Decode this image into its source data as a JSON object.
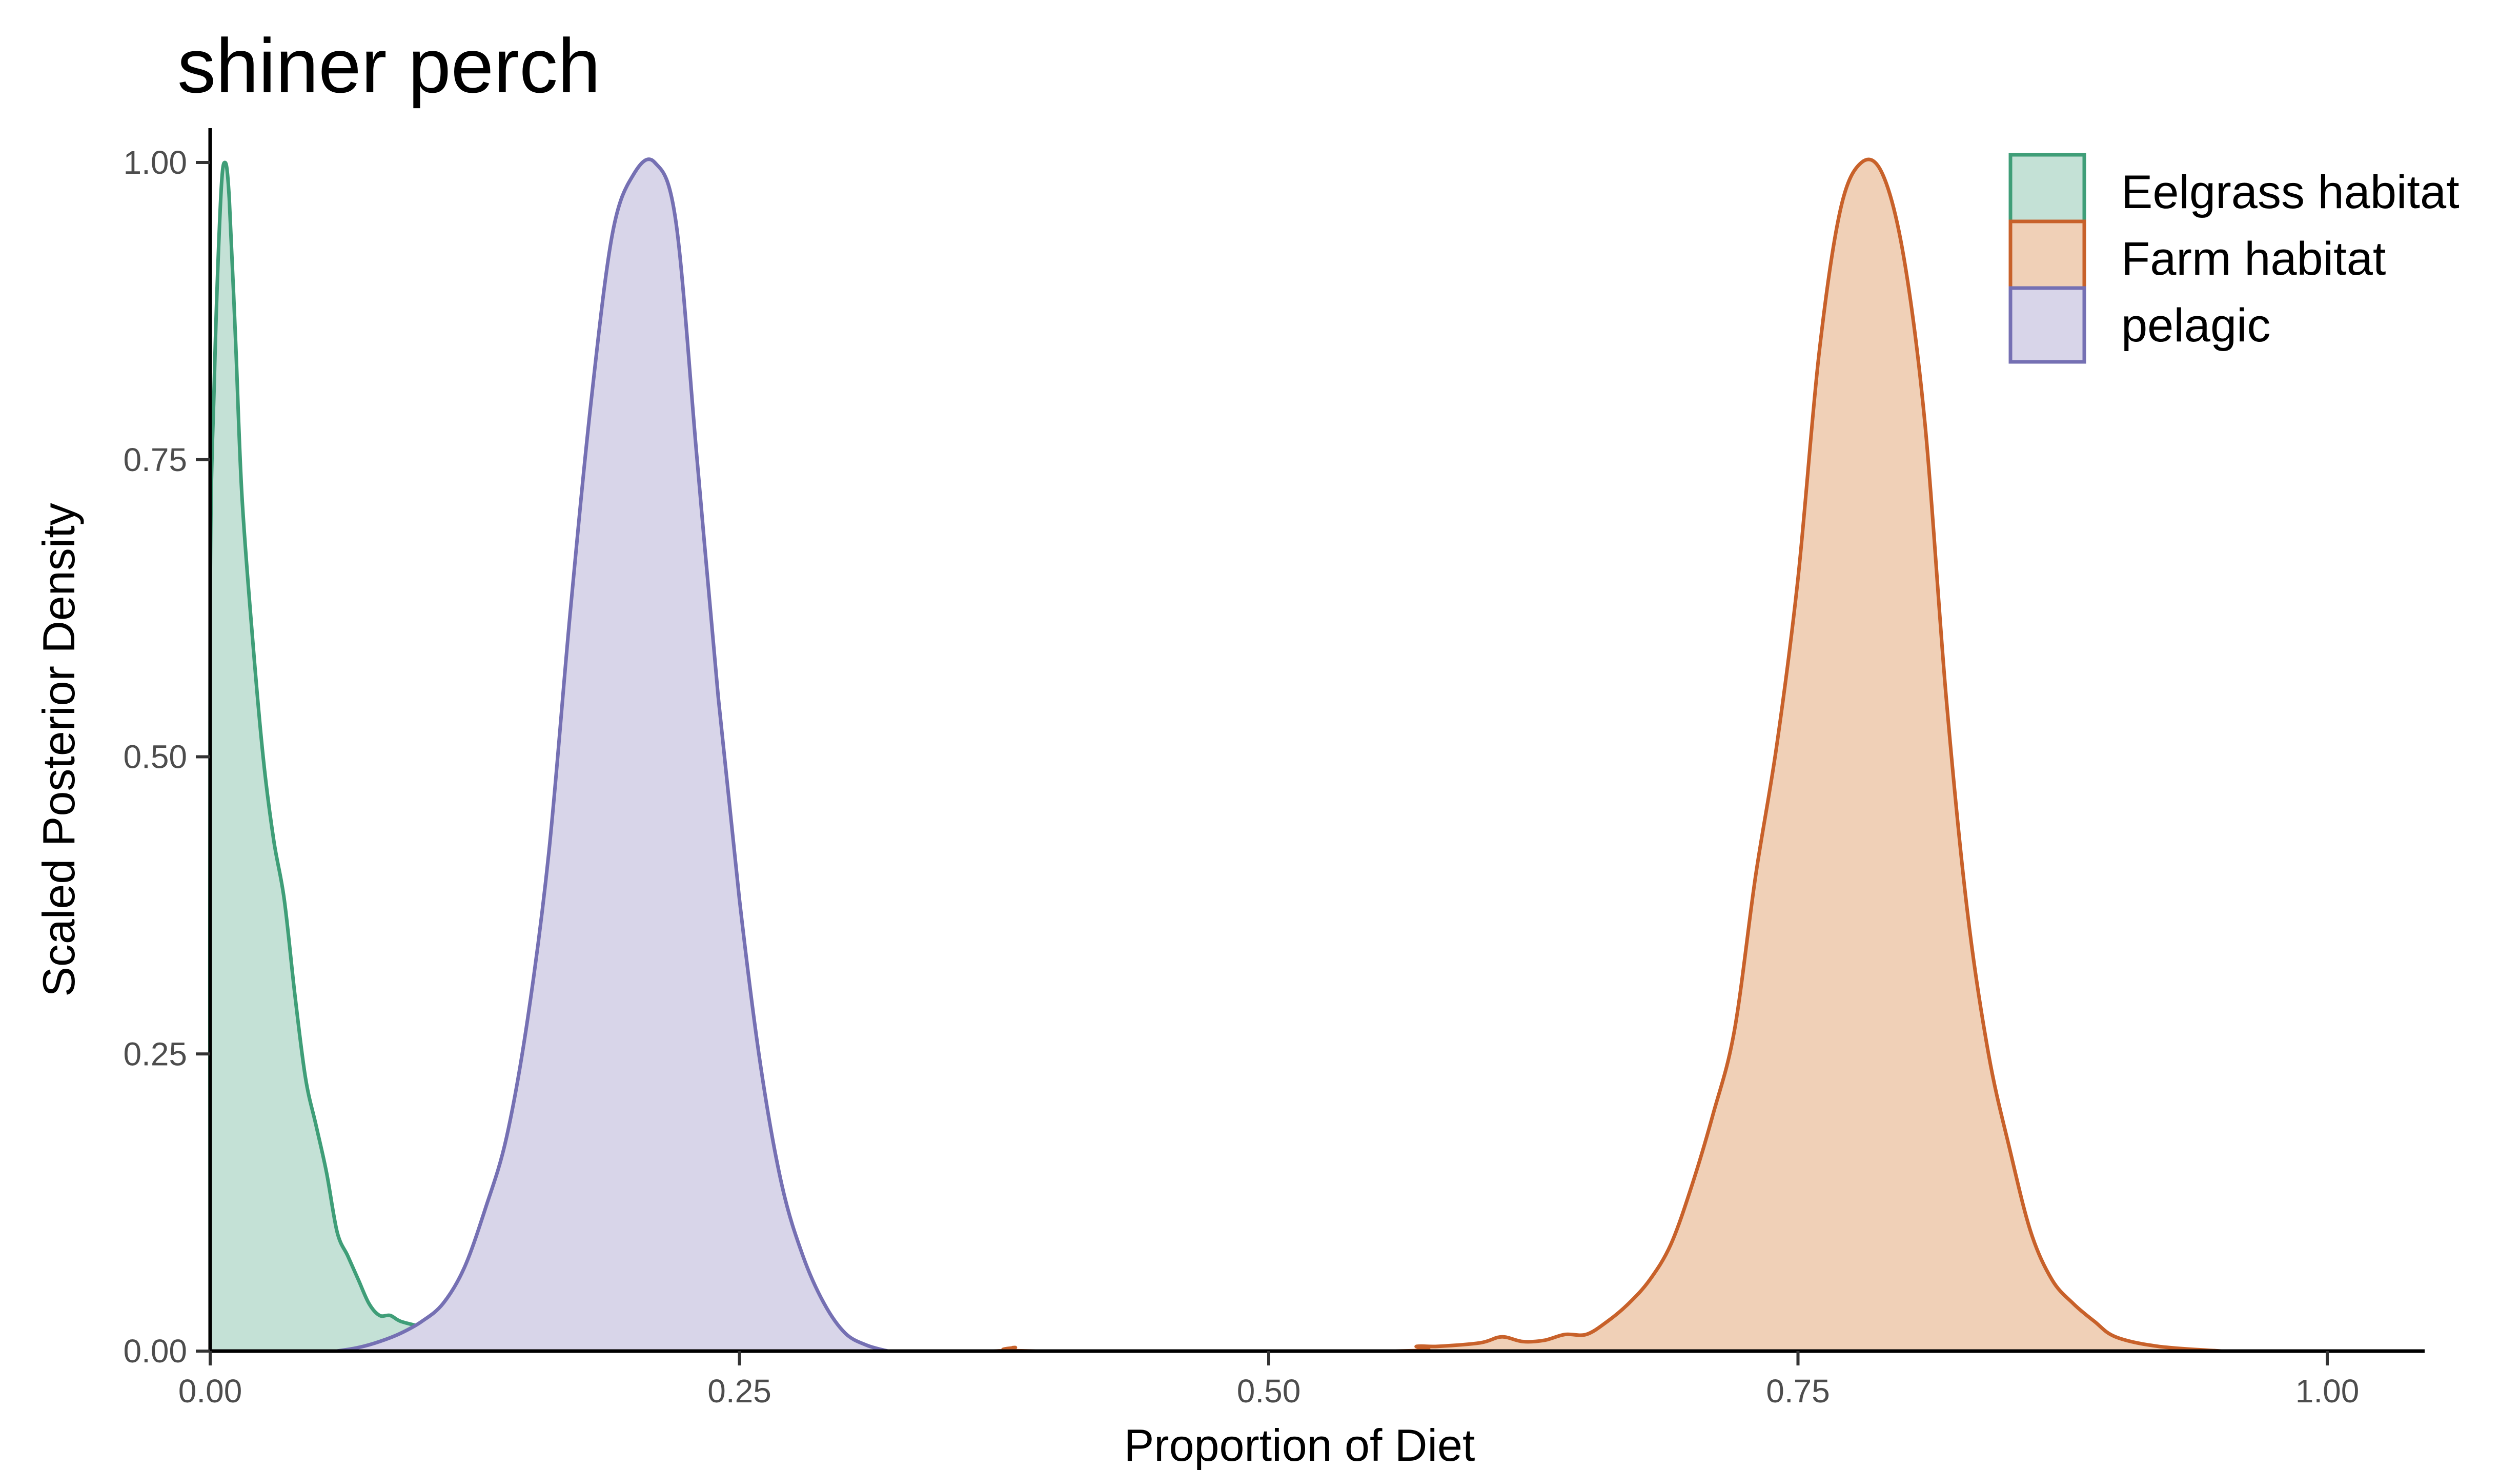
{
  "chart_data": {
    "type": "area",
    "title": "shiner perch",
    "xlabel": "Proportion of Diet",
    "ylabel": "Scaled Posterior Density",
    "xlim": [
      0,
      1.05
    ],
    "ylim": [
      0,
      1.0
    ],
    "xticks": [
      {
        "value": 0.0,
        "label": "0.00"
      },
      {
        "value": 0.25,
        "label": "0.25"
      },
      {
        "value": 0.5,
        "label": "0.50"
      },
      {
        "value": 0.75,
        "label": "0.75"
      },
      {
        "value": 1.0,
        "label": "1.00"
      }
    ],
    "yticks": [
      {
        "value": 0.0,
        "label": "0.00"
      },
      {
        "value": 0.25,
        "label": "0.25"
      },
      {
        "value": 0.5,
        "label": "0.50"
      },
      {
        "value": 0.75,
        "label": "0.75"
      },
      {
        "value": 1.0,
        "label": "1.00"
      }
    ],
    "grid": false,
    "legend_position": "top-right",
    "series": [
      {
        "name": "Eelgrass habitat",
        "stroke": "#3f9e78",
        "fill": "#c4e1d6",
        "points": [
          [
            0.0,
            0.0
          ],
          [
            0.0,
            0.62
          ],
          [
            0.002,
            0.82
          ],
          [
            0.005,
            0.97
          ],
          [
            0.007,
            1.0
          ],
          [
            0.009,
            0.97
          ],
          [
            0.012,
            0.85
          ],
          [
            0.015,
            0.72
          ],
          [
            0.02,
            0.6
          ],
          [
            0.025,
            0.5
          ],
          [
            0.03,
            0.43
          ],
          [
            0.035,
            0.38
          ],
          [
            0.04,
            0.3
          ],
          [
            0.045,
            0.23
          ],
          [
            0.05,
            0.19
          ],
          [
            0.055,
            0.15
          ],
          [
            0.06,
            0.1
          ],
          [
            0.065,
            0.08
          ],
          [
            0.07,
            0.06
          ],
          [
            0.075,
            0.04
          ],
          [
            0.08,
            0.03
          ],
          [
            0.085,
            0.03
          ],
          [
            0.09,
            0.025
          ],
          [
            0.1,
            0.02
          ],
          [
            0.11,
            0.012
          ],
          [
            0.12,
            0.006
          ],
          [
            0.13,
            0.003
          ],
          [
            0.14,
            0.002
          ],
          [
            0.15,
            0.002
          ],
          [
            0.2,
            0.002
          ],
          [
            0.3,
            0.0
          ]
        ]
      },
      {
        "name": "Farm habitat",
        "stroke": "#c8612a",
        "fill": "#f0d0b7",
        "points": [
          [
            0.3,
            0.0
          ],
          [
            0.37,
            0.0
          ],
          [
            0.38,
            0.003
          ],
          [
            0.39,
            0.0
          ],
          [
            0.56,
            0.0
          ],
          [
            0.57,
            0.004
          ],
          [
            0.58,
            0.004
          ],
          [
            0.6,
            0.007
          ],
          [
            0.61,
            0.012
          ],
          [
            0.62,
            0.008
          ],
          [
            0.63,
            0.009
          ],
          [
            0.64,
            0.014
          ],
          [
            0.65,
            0.014
          ],
          [
            0.66,
            0.025
          ],
          [
            0.67,
            0.04
          ],
          [
            0.68,
            0.06
          ],
          [
            0.69,
            0.09
          ],
          [
            0.7,
            0.14
          ],
          [
            0.71,
            0.2
          ],
          [
            0.72,
            0.27
          ],
          [
            0.73,
            0.4
          ],
          [
            0.74,
            0.51
          ],
          [
            0.75,
            0.65
          ],
          [
            0.76,
            0.84
          ],
          [
            0.77,
            0.96
          ],
          [
            0.78,
            1.0
          ],
          [
            0.79,
            0.99
          ],
          [
            0.8,
            0.92
          ],
          [
            0.81,
            0.78
          ],
          [
            0.82,
            0.55
          ],
          [
            0.83,
            0.37
          ],
          [
            0.84,
            0.25
          ],
          [
            0.85,
            0.17
          ],
          [
            0.86,
            0.1
          ],
          [
            0.87,
            0.06
          ],
          [
            0.88,
            0.04
          ],
          [
            0.89,
            0.025
          ],
          [
            0.9,
            0.012
          ],
          [
            0.92,
            0.004
          ],
          [
            0.95,
            0.0
          ]
        ]
      },
      {
        "name": "pelagic",
        "stroke": "#7570b3",
        "fill": "#d8d5e9",
        "points": [
          [
            0.06,
            0.0
          ],
          [
            0.07,
            0.003
          ],
          [
            0.08,
            0.008
          ],
          [
            0.09,
            0.015
          ],
          [
            0.1,
            0.025
          ],
          [
            0.11,
            0.04
          ],
          [
            0.12,
            0.07
          ],
          [
            0.13,
            0.12
          ],
          [
            0.14,
            0.18
          ],
          [
            0.15,
            0.28
          ],
          [
            0.16,
            0.42
          ],
          [
            0.17,
            0.62
          ],
          [
            0.18,
            0.8
          ],
          [
            0.19,
            0.94
          ],
          [
            0.2,
            0.99
          ],
          [
            0.21,
            1.0
          ],
          [
            0.22,
            0.95
          ],
          [
            0.23,
            0.75
          ],
          [
            0.24,
            0.55
          ],
          [
            0.25,
            0.38
          ],
          [
            0.26,
            0.24
          ],
          [
            0.27,
            0.14
          ],
          [
            0.28,
            0.08
          ],
          [
            0.29,
            0.04
          ],
          [
            0.3,
            0.015
          ],
          [
            0.31,
            0.005
          ],
          [
            0.32,
            0.0
          ]
        ]
      }
    ]
  }
}
